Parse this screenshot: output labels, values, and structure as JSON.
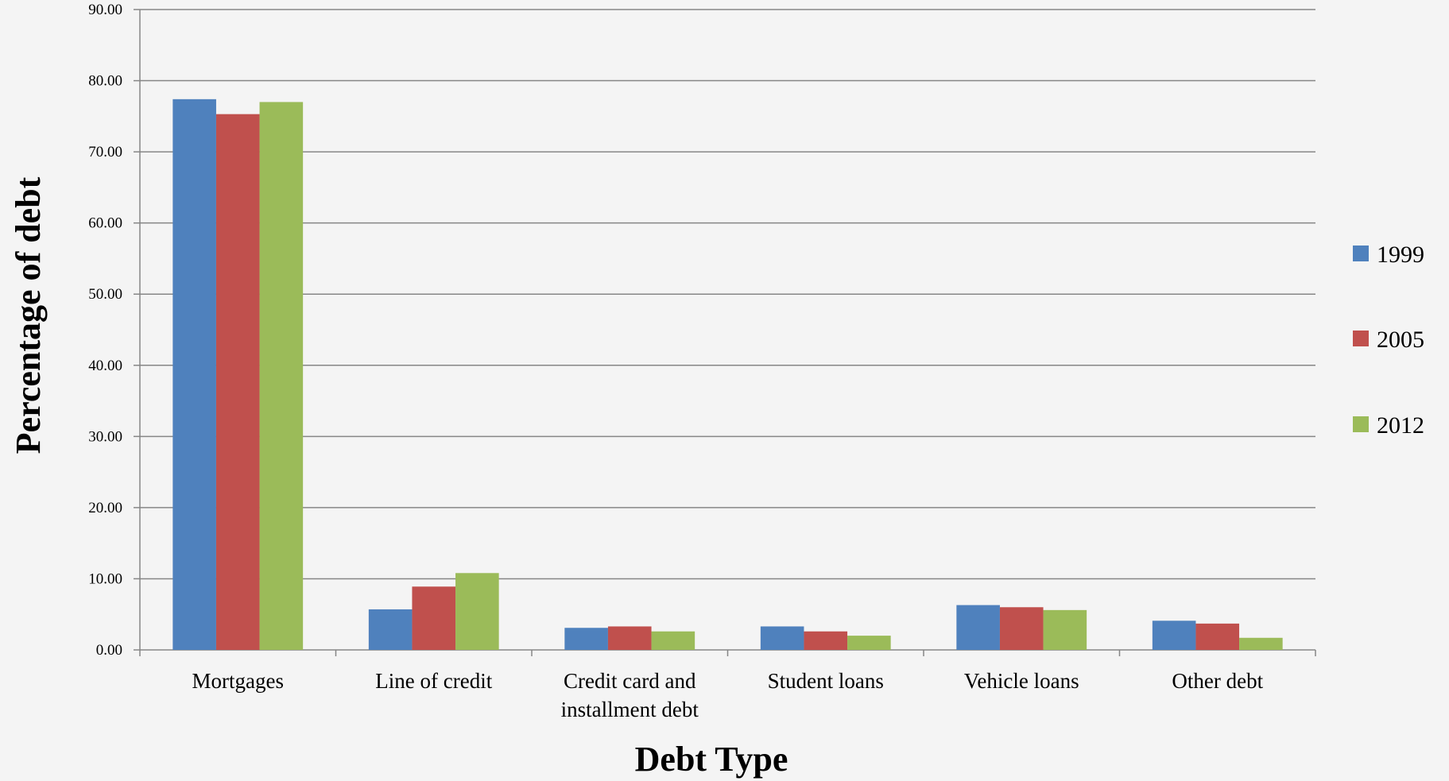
{
  "chart_data": {
    "type": "bar",
    "title": "",
    "xlabel": "Debt Type",
    "ylabel": "Percentage of debt",
    "ylim": [
      0,
      90
    ],
    "yticks": [
      "0.00",
      "10.00",
      "20.00",
      "30.00",
      "40.00",
      "50.00",
      "60.00",
      "70.00",
      "80.00",
      "90.00"
    ],
    "grid": true,
    "legend_position": "right",
    "categories": [
      [
        "Mortgages"
      ],
      [
        "Line of credit"
      ],
      [
        "Credit card and",
        "installment debt"
      ],
      [
        "Student loans"
      ],
      [
        "Vehicle loans"
      ],
      [
        "Other debt"
      ]
    ],
    "series": [
      {
        "name": "1999",
        "color": "#4f81bd",
        "values": [
          77.4,
          5.7,
          3.1,
          3.3,
          6.3,
          4.1
        ]
      },
      {
        "name": "2005",
        "color": "#c0504d",
        "values": [
          75.3,
          8.9,
          3.3,
          2.6,
          6.0,
          3.7
        ]
      },
      {
        "name": "2012",
        "color": "#9bbb59",
        "values": [
          77.0,
          10.8,
          2.6,
          2.0,
          5.6,
          1.7
        ]
      }
    ]
  }
}
